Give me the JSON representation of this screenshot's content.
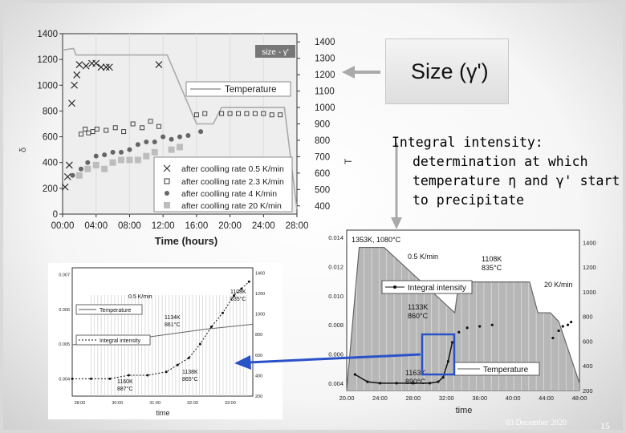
{
  "slide": {
    "size_title": "Size (γ')",
    "note_line1": "Integral intensity:",
    "note_line2": "determination at which",
    "note_line3": "temperature η and γ' start",
    "note_line4": "to precipitate",
    "footer_date": "03 December 2020",
    "page_number": "15"
  },
  "colors": {
    "gray_fill": "#b0b0b0",
    "highlight": "#2a52c8",
    "series_dark": "#333333"
  },
  "chart_data": [
    {
      "type": "scatter",
      "xlabel": "Time (hours)",
      "left_axis_ticks": [
        0,
        200,
        400,
        600,
        800,
        1000,
        1200,
        1400
      ],
      "left_ylim": [
        0,
        1400
      ],
      "right_axis_ticks": [
        400,
        500,
        600,
        700,
        800,
        900,
        1000,
        1100,
        1200,
        1300,
        1400
      ],
      "right_ylim": [
        350,
        1450
      ],
      "x_ticks": [
        "00:00",
        "04:00",
        "08:00",
        "12:00",
        "16:00",
        "20:00",
        "24:00",
        "28:00"
      ],
      "xlim": [
        0,
        28
      ],
      "tag": "size - γ'",
      "temperature_label": "Temperature",
      "legend_position": "bottom-right",
      "series": [
        {
          "name": "after coolling rate 0.5 K/min",
          "marker": "x",
          "x": [
            0.3,
            0.6,
            0.8,
            1.1,
            1.4,
            1.7,
            2.0,
            2.8,
            3.5,
            4.0,
            4.6,
            5.2,
            5.6,
            11.5
          ],
          "y": [
            210,
            290,
            380,
            860,
            1000,
            1080,
            1160,
            1150,
            1170,
            1170,
            1140,
            1140,
            1140,
            1160
          ]
        },
        {
          "name": "after coolling rate 2.3 K/min",
          "marker": "square",
          "x": [
            2.2,
            2.7,
            3.1,
            3.6,
            4.1,
            5.2,
            6.3,
            7.3,
            8.4,
            9.5,
            10.5,
            11.5,
            16.0,
            17.0,
            19.0,
            20.0,
            21.0,
            22.0,
            23.0,
            24.0,
            25.0,
            26.0
          ],
          "y": [
            620,
            660,
            630,
            640,
            660,
            650,
            670,
            640,
            700,
            670,
            720,
            680,
            770,
            780,
            780,
            780,
            780,
            780,
            780,
            780,
            770,
            770
          ]
        },
        {
          "name": "after coolling rate 4 K/min",
          "marker": "circle",
          "x": [
            1.2,
            2.2,
            3.0,
            4.0,
            5.0,
            6.0,
            7.0,
            8.0,
            9.0,
            10.0,
            11.0,
            12.0,
            13.0,
            14.0,
            15.0,
            16.5
          ],
          "y": [
            300,
            350,
            400,
            450,
            460,
            480,
            480,
            500,
            540,
            560,
            560,
            600,
            580,
            600,
            610,
            640
          ]
        },
        {
          "name": "after coolling rate 20 K/min",
          "marker": "square-fill",
          "x": [
            2.0,
            3.0,
            4.0,
            5.0,
            6.0,
            7.0,
            8.0,
            9.0,
            10.0,
            11.0,
            12.0,
            13.0,
            14.0
          ],
          "y": [
            300,
            350,
            380,
            350,
            400,
            420,
            420,
            420,
            450,
            480,
            420,
            500,
            520
          ]
        },
        {
          "name": "Temperature",
          "marker": "line",
          "x": [
            0,
            1.3,
            1.6,
            12.5,
            16.0,
            18.0,
            19.0,
            26.5,
            28.0
          ],
          "y": [
            1350,
            1360,
            1320,
            1320,
            900,
            900,
            1000,
            1000,
            380
          ]
        }
      ]
    },
    {
      "type": "line",
      "xlabel": "time",
      "x_ticks": [
        "20.00",
        "24:00",
        "28:00",
        "32:00",
        "36:00",
        "40:00",
        "44:00",
        "48:00"
      ],
      "xlim": [
        20,
        48
      ],
      "left_axis_ticks": [
        "0.004",
        "0.006",
        "0.008",
        "0.010",
        "0.012",
        "0.014"
      ],
      "left_ylim": [
        0.0035,
        0.0145
      ],
      "right_axis_ticks": [
        200,
        400,
        600,
        800,
        1000,
        1200,
        1400
      ],
      "right_ylim": [
        200,
        1500
      ],
      "annotations": [
        "1353K, 1080°C",
        "0.5 K/min",
        "1108K\n835°C",
        "20 K/min",
        "1133K\n860°C",
        "1163K\n890°C"
      ],
      "legend": [
        "Integral intensity",
        "Temperature"
      ],
      "series": [
        {
          "name": "Integral intensity",
          "marker": "dot",
          "x": [
            21.0,
            22.5,
            24.0,
            26.0,
            28.0,
            30.0,
            31.0,
            31.6,
            32.2,
            32.7,
            33.5,
            34.5,
            36.0,
            37.5,
            44.8,
            45.5,
            46.0,
            46.6,
            47.0
          ],
          "y": [
            0.0046,
            0.0041,
            0.004,
            0.004,
            0.004,
            0.004,
            0.0041,
            0.0044,
            0.0055,
            0.0068,
            0.0075,
            0.0078,
            0.0079,
            0.008,
            0.0071,
            0.0076,
            0.0079,
            0.008,
            0.0082
          ]
        },
        {
          "name": "Temperature",
          "marker": "line",
          "x": [
            20,
            21.5,
            24.5,
            33.0,
            33.5,
            42.0,
            43.0,
            44.5,
            45.5,
            48.0
          ],
          "y": [
            200,
            1360,
            1360,
            830,
            1080,
            1080,
            830,
            830,
            760,
            260
          ]
        }
      ]
    },
    {
      "type": "line",
      "xlabel": "time",
      "x_ticks": [
        "28:00",
        "30:00",
        "31:00",
        "32:00",
        "33:00"
      ],
      "xlim": [
        28.5,
        33.3
      ],
      "left_axis_ticks": [
        "0.004",
        "0.005",
        "0.006",
        "0.007"
      ],
      "left_ylim": [
        0.0035,
        0.0072
      ],
      "right_axis_ticks": [
        200,
        400,
        600,
        800,
        1000,
        1200,
        1400
      ],
      "right_ylim": [
        200,
        1450
      ],
      "annotations": [
        "0.5 K/min",
        "1108K\n835°C",
        "1134K\n861°C",
        "1138K\n865°C",
        "1160K\n887°C"
      ],
      "legend": [
        "Temperature",
        "Integral intensity"
      ],
      "series": [
        {
          "name": "Integral intensity",
          "marker": "dot",
          "x": [
            28.5,
            29.0,
            29.5,
            30.0,
            30.5,
            31.0,
            31.3,
            31.6,
            31.9,
            32.2,
            32.5,
            32.8,
            33.0,
            33.2
          ],
          "y": [
            0.004,
            0.004,
            0.004,
            0.0041,
            0.0041,
            0.0042,
            0.0044,
            0.0046,
            0.005,
            0.0055,
            0.0059,
            0.0064,
            0.0066,
            0.0068
          ]
        },
        {
          "name": "Temperature",
          "marker": "line",
          "x": [
            28.5,
            30.0,
            31.0,
            32.0,
            33.3
          ],
          "y": [
            700,
            750,
            800,
            850,
            900
          ]
        }
      ]
    }
  ]
}
